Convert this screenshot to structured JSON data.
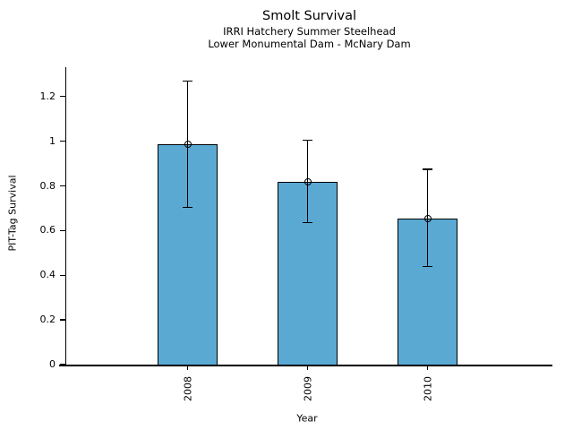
{
  "figure": {
    "title": "Smolt Survival",
    "subtitle1": "IRRI Hatchery Summer Steelhead",
    "subtitle2": "Lower Monumental Dam - McNary Dam"
  },
  "chart_data": {
    "type": "bar",
    "title": "Smolt Survival",
    "subtitles": [
      "IRRI Hatchery Summer Steelhead",
      "Lower Monumental Dam - McNary Dam"
    ],
    "categories": [
      "2008",
      "2009",
      "2010"
    ],
    "values": [
      0.985,
      0.82,
      0.655
    ],
    "error_bars": {
      "upper": [
        1.27,
        1.005,
        0.875
      ],
      "lower": [
        0.705,
        0.635,
        0.44
      ]
    },
    "xlabel": "Year",
    "ylabel": "PIT-Tag Survival",
    "ylim": [
      0,
      1.33
    ],
    "yticks": [
      0,
      0.2,
      0.4,
      0.6,
      0.8,
      1,
      1.2
    ],
    "ytick_labels": [
      "0",
      "0.2",
      "0.4",
      "0.6",
      "0.8",
      "1",
      "1.2"
    ],
    "xtick_labels_rotated": true,
    "bar_color": "#5AA9D3",
    "bar_edge_color": "#000000",
    "error_bar_color": "#000000",
    "marker": "open-circle",
    "grid": false,
    "legend_position": "none"
  }
}
